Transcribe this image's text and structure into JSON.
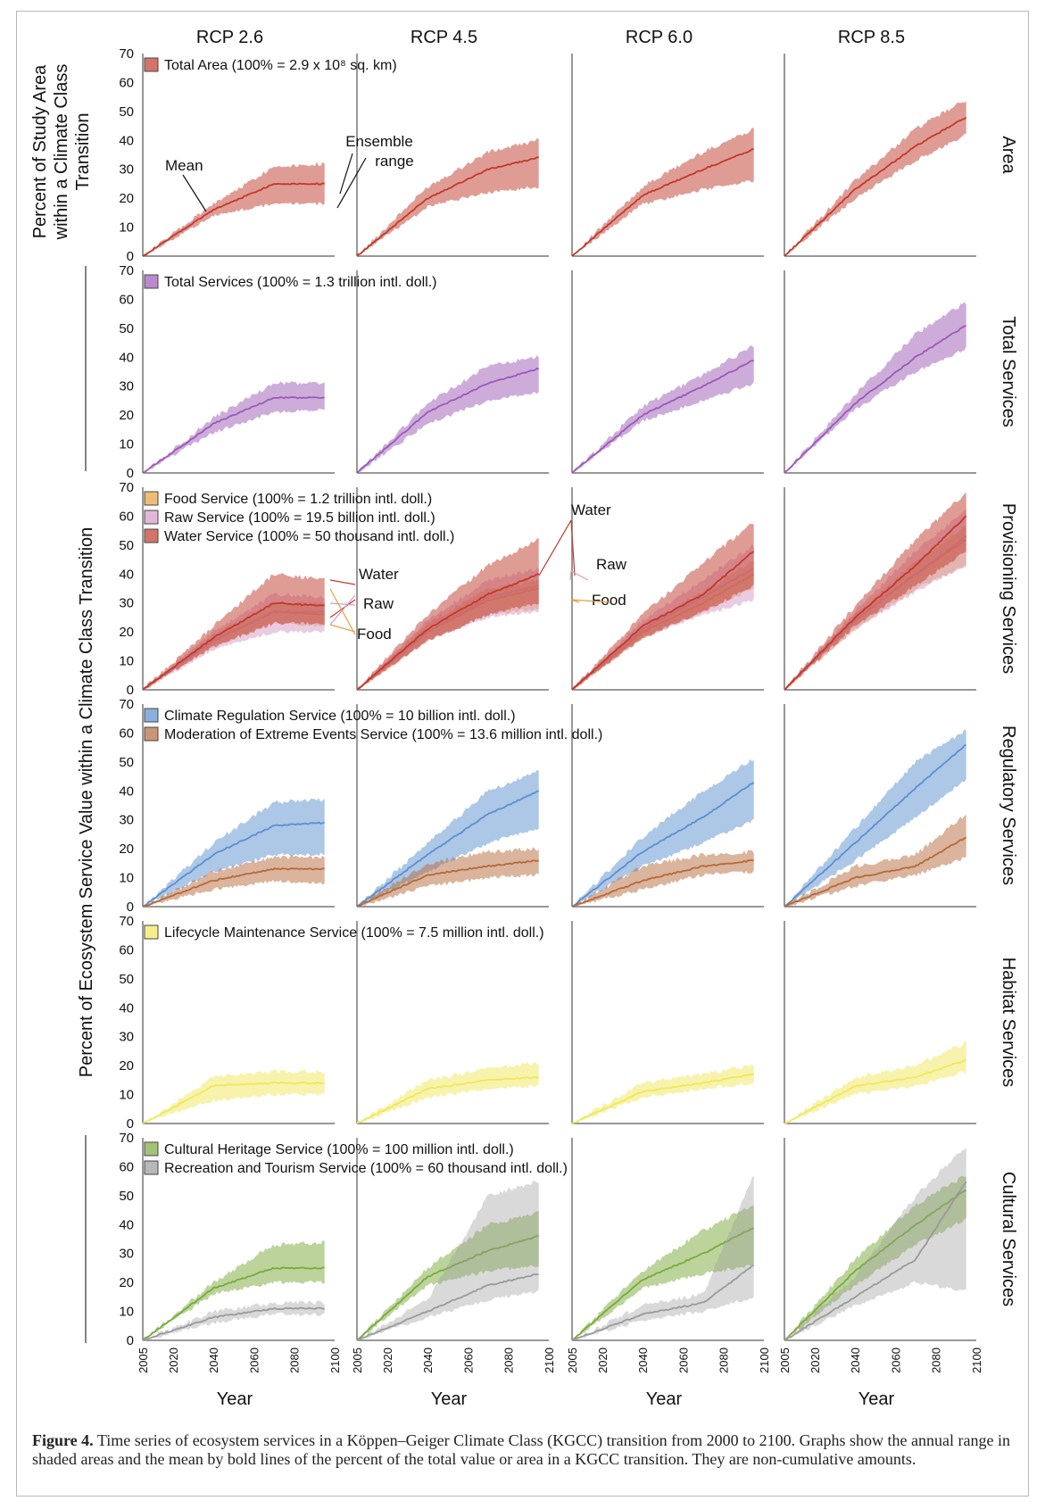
{
  "caption": {
    "label": "Figure 4.",
    "text": "Time series of ecosystem services in a Köppen–Geiger Climate Class (KGCC) transition from 2000 to 2100. Graphs show the annual range in shaded areas and the mean by bold lines of the percent of the total value or area in a KGCC transition. They are non-cumulative amounts."
  },
  "columns": [
    "RCP 2.6",
    "RCP 4.5",
    "RCP 6.0",
    "RCP 8.5"
  ],
  "row_titles": [
    "Area",
    "Total Services",
    "Provisioning Services",
    "Regulatory Services",
    "Habitat Services",
    "Cultural Services"
  ],
  "y_titles": {
    "area": [
      "Percent of Study Area",
      "within a Climate Class",
      "Transition"
    ],
    "services": "Percent of Ecosystem Service Value within a Climate Class Transition"
  },
  "annotations": {
    "mean": "Mean",
    "ensemble": [
      "Ensemble",
      "range"
    ],
    "water": "Water",
    "raw": "Raw",
    "food": "Food"
  },
  "colors": {
    "area": "#c0392b",
    "total": "#9b59b6",
    "food": "#e6a03c",
    "raw": "#d59ac6",
    "water": "#c0392b",
    "climate": "#5b8fd0",
    "extreme": "#b56a3a",
    "lifecycle": "#f0e85a",
    "cultural": "#7aaa3a",
    "recreation": "#9a9a9a"
  },
  "chart_data": {
    "type": "area",
    "x_ticks": [
      2005,
      2020,
      2040,
      2060,
      2080,
      2100
    ],
    "xlabel": "Year",
    "y_ticks": [
      0,
      10,
      20,
      30,
      40,
      50,
      60,
      70
    ],
    "xlim": [
      2005,
      2100
    ],
    "ylim": [
      0,
      70
    ],
    "legend_position": "top-left",
    "rows": [
      {
        "legend": [
          {
            "name": "Total Area (100% = 2.9 x 10⁸ sq. km)",
            "color": "area"
          }
        ],
        "series": [
          {
            "color": "area",
            "x": [
              2005,
              2040,
              2070,
              2095
            ],
            "mean": [
              [
                0,
                16,
                25,
                25
              ],
              [
                0,
                20,
                30,
                34
              ],
              [
                0,
                21,
                30,
                37
              ],
              [
                0,
                23,
                38,
                48
              ]
            ],
            "lower": [
              [
                0,
                14,
                18,
                18
              ],
              [
                0,
                17,
                22,
                24
              ],
              [
                0,
                18,
                23,
                26
              ],
              [
                0,
                20,
                33,
                42
              ]
            ],
            "upper": [
              [
                0,
                18,
                31,
                32
              ],
              [
                0,
                24,
                36,
                40
              ],
              [
                0,
                24,
                36,
                44
              ],
              [
                0,
                26,
                44,
                54
              ]
            ]
          }
        ]
      },
      {
        "legend": [
          {
            "name": "Total Services (100% = 1.3 trillion intl. doll.)",
            "color": "total"
          }
        ],
        "series": [
          {
            "color": "total",
            "x": [
              2005,
              2040,
              2070,
              2095
            ],
            "mean": [
              [
                0,
                17,
                26,
                26
              ],
              [
                0,
                21,
                31,
                36
              ],
              [
                0,
                20,
                30,
                39
              ],
              [
                0,
                24,
                40,
                51
              ]
            ],
            "lower": [
              [
                0,
                14,
                21,
                22
              ],
              [
                0,
                17,
                25,
                28
              ],
              [
                0,
                18,
                25,
                31
              ],
              [
                0,
                22,
                35,
                43
              ]
            ],
            "upper": [
              [
                0,
                19,
                31,
                31
              ],
              [
                0,
                24,
                37,
                40
              ],
              [
                0,
                23,
                34,
                44
              ],
              [
                0,
                27,
                48,
                59
              ]
            ]
          }
        ]
      },
      {
        "legend": [
          {
            "name": "Food Service (100% = 1.2 trillion intl. doll.)",
            "color": "food"
          },
          {
            "name": "Raw Service (100% = 19.5 billion intl. doll.)",
            "color": "raw"
          },
          {
            "name": "Water Service (100% = 50 thousand intl. doll.)",
            "color": "water"
          }
        ],
        "series": [
          {
            "color": "food",
            "x": [
              2005,
              2040,
              2070,
              2095
            ],
            "mean": [
              [
                0,
                17,
                27,
                26
              ],
              [
                0,
                20,
                31,
                35
              ],
              [
                0,
                20,
                30,
                40
              ],
              [
                0,
                24,
                40,
                52
              ]
            ],
            "lower": [
              [
                0,
                15,
                23,
                22
              ],
              [
                0,
                17,
                26,
                28
              ],
              [
                0,
                18,
                27,
                35
              ],
              [
                0,
                21,
                35,
                43
              ]
            ],
            "upper": [
              [
                0,
                19,
                30,
                30
              ],
              [
                0,
                23,
                35,
                38
              ],
              [
                0,
                22,
                34,
                45
              ],
              [
                0,
                26,
                44,
                57
              ]
            ]
          },
          {
            "color": "raw",
            "x": [
              2005,
              2040,
              2070,
              2095
            ],
            "mean": [
              [
                0,
                17,
                27,
                27
              ],
              [
                0,
                20,
                32,
                36
              ],
              [
                0,
                21,
                32,
                42
              ],
              [
                0,
                24,
                40,
                53
              ]
            ],
            "lower": [
              [
                0,
                14,
                20,
                20
              ],
              [
                0,
                17,
                25,
                27
              ],
              [
                0,
                18,
                26,
                31
              ],
              [
                0,
                21,
                34,
                43
              ]
            ],
            "upper": [
              [
                0,
                20,
                33,
                32
              ],
              [
                0,
                24,
                38,
                42
              ],
              [
                0,
                24,
                38,
                50
              ],
              [
                0,
                27,
                48,
                62
              ]
            ]
          },
          {
            "color": "water",
            "x": [
              2005,
              2040,
              2070,
              2095
            ],
            "mean": [
              [
                0,
                18,
                30,
                29
              ],
              [
                0,
                21,
                33,
                40
              ],
              [
                0,
                22,
                33,
                48
              ],
              [
                0,
                25,
                43,
                60
              ]
            ],
            "lower": [
              [
                0,
                15,
                23,
                23
              ],
              [
                0,
                17,
                26,
                30
              ],
              [
                0,
                18,
                27,
                36
              ],
              [
                0,
                22,
                36,
                48
              ]
            ],
            "upper": [
              [
                0,
                22,
                40,
                38
              ],
              [
                0,
                26,
                43,
                52
              ],
              [
                0,
                26,
                44,
                58
              ],
              [
                0,
                29,
                52,
                68
              ]
            ]
          }
        ]
      },
      {
        "legend": [
          {
            "name": "Climate Regulation Service (100% = 10 billion intl. doll.)",
            "color": "climate"
          },
          {
            "name": "Moderation of Extreme Events Service (100% = 13.6 million intl. doll.)",
            "color": "extreme"
          }
        ],
        "series": [
          {
            "color": "climate",
            "x": [
              2005,
              2040,
              2070,
              2095
            ],
            "mean": [
              [
                0,
                18,
                28,
                29
              ],
              [
                0,
                18,
                32,
                40
              ],
              [
                0,
                19,
                31,
                43
              ],
              [
                0,
                22,
                41,
                56
              ]
            ],
            "lower": [
              [
                0,
                12,
                18,
                18
              ],
              [
                0,
                12,
                22,
                27
              ],
              [
                0,
                14,
                22,
                30
              ],
              [
                0,
                16,
                31,
                44
              ]
            ],
            "upper": [
              [
                0,
                22,
                36,
                37
              ],
              [
                0,
                22,
                40,
                47
              ],
              [
                0,
                24,
                40,
                51
              ],
              [
                0,
                27,
                50,
                61
              ]
            ]
          },
          {
            "color": "extreme",
            "x": [
              2005,
              2040,
              2070,
              2095
            ],
            "mean": [
              [
                0,
                9,
                13,
                13
              ],
              [
                0,
                11,
                14,
                16
              ],
              [
                0,
                9,
                14,
                16
              ],
              [
                0,
                10,
                14,
                24
              ]
            ],
            "lower": [
              [
                0,
                6,
                9,
                8
              ],
              [
                0,
                7,
                10,
                11
              ],
              [
                0,
                6,
                11,
                12
              ],
              [
                0,
                7,
                11,
                17
              ]
            ],
            "upper": [
              [
                0,
                12,
                17,
                17
              ],
              [
                0,
                15,
                19,
                20
              ],
              [
                0,
                14,
                18,
                19
              ],
              [
                0,
                14,
                18,
                32
              ]
            ]
          }
        ]
      },
      {
        "legend": [
          {
            "name": "Lifecycle Maintenance Service (100% = 7.5 million intl. doll.)",
            "color": "lifecycle"
          }
        ],
        "series": [
          {
            "color": "lifecycle",
            "x": [
              2005,
              2040,
              2070,
              2095
            ],
            "mean": [
              [
                0,
                13,
                14,
                14
              ],
              [
                0,
                12,
                15,
                16
              ],
              [
                0,
                11,
                14,
                17
              ],
              [
                0,
                13,
                16,
                22
              ]
            ],
            "lower": [
              [
                0,
                8,
                10,
                10
              ],
              [
                0,
                9,
                12,
                13
              ],
              [
                0,
                9,
                12,
                14
              ],
              [
                0,
                10,
                13,
                18
              ]
            ],
            "upper": [
              [
                0,
                16,
                18,
                18
              ],
              [
                0,
                15,
                19,
                21
              ],
              [
                0,
                14,
                17,
                20
              ],
              [
                0,
                16,
                20,
                28
              ]
            ]
          }
        ]
      },
      {
        "legend": [
          {
            "name": "Cultural Heritage Service (100% = 100 million intl. doll.)",
            "color": "cultural"
          },
          {
            "name": "Recreation and Tourism Service (100% = 60 thousand intl. doll.)",
            "color": "recreation"
          }
        ],
        "series": [
          {
            "color": "cultural",
            "x": [
              2005,
              2040,
              2070,
              2095
            ],
            "mean": [
              [
                0,
                18,
                25,
                25
              ],
              [
                0,
                22,
                31,
                36
              ],
              [
                0,
                21,
                30,
                39
              ],
              [
                0,
                24,
                40,
                52
              ]
            ],
            "lower": [
              [
                0,
                16,
                20,
                20
              ],
              [
                0,
                19,
                24,
                26
              ],
              [
                0,
                18,
                23,
                26
              ],
              [
                0,
                19,
                33,
                42
              ]
            ],
            "upper": [
              [
                0,
                20,
                33,
                34
              ],
              [
                0,
                25,
                40,
                44
              ],
              [
                0,
                24,
                38,
                47
              ],
              [
                0,
                28,
                47,
                57
              ]
            ]
          },
          {
            "color": "recreation",
            "x": [
              2005,
              2040,
              2070,
              2095
            ],
            "mean": [
              [
                0,
                8,
                11,
                11
              ],
              [
                0,
                10,
                19,
                23
              ],
              [
                0,
                9,
                13,
                26
              ],
              [
                0,
                15,
                28,
                55
              ]
            ],
            "lower": [
              [
                0,
                6,
                9,
                9
              ],
              [
                0,
                8,
                14,
                17
              ],
              [
                0,
                7,
                10,
                15
              ],
              [
                0,
                12,
                20,
                17
              ]
            ],
            "upper": [
              [
                0,
                10,
                13,
                13
              ],
              [
                0,
                14,
                50,
                55
              ],
              [
                0,
                12,
                16,
                57
              ],
              [
                0,
                22,
                50,
                67
              ]
            ]
          }
        ]
      }
    ]
  }
}
